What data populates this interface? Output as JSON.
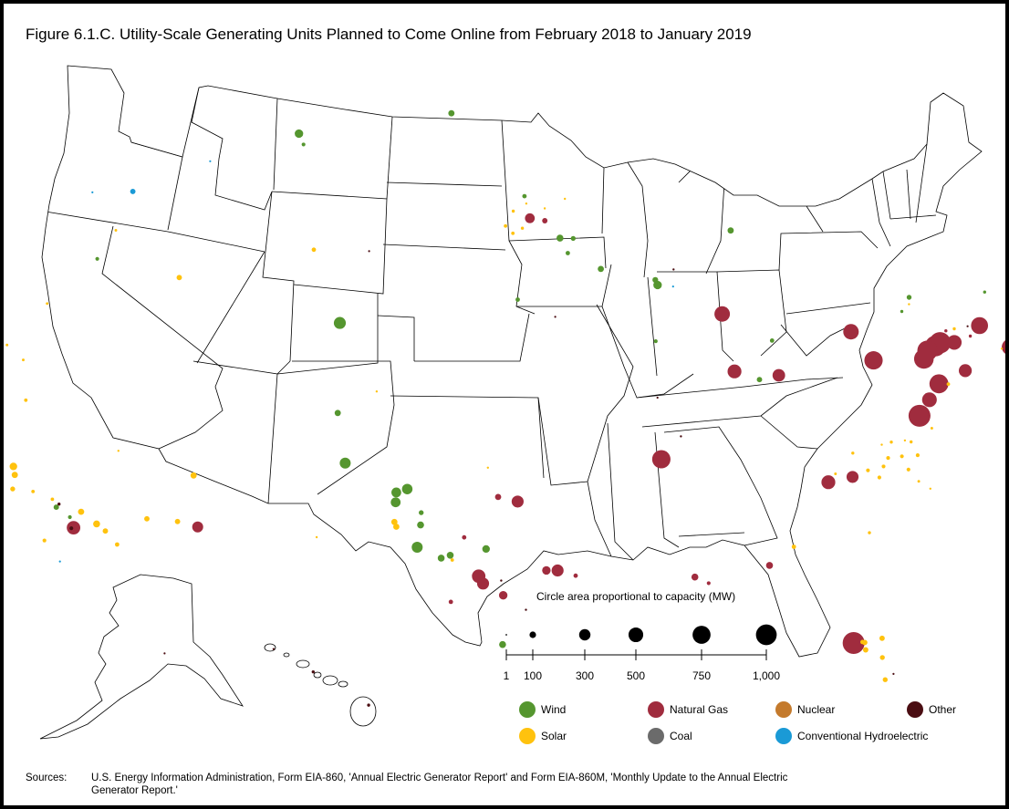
{
  "title": "Figure 6.1.C. Utility-Scale Generating Units Planned to Come Online from February 2018 to January 2019",
  "scale": {
    "caption": "Circle area proportional to capacity (MW)",
    "ticks": [
      "1",
      "100",
      "300",
      "500",
      "750",
      "1,000"
    ],
    "values": [
      1,
      100,
      300,
      500,
      750,
      1000
    ]
  },
  "legend": [
    {
      "key": "wind",
      "label": "Wind",
      "color": "#55962f"
    },
    {
      "key": "solar",
      "label": "Solar",
      "color": "#ffc20e"
    },
    {
      "key": "gas",
      "label": "Natural Gas",
      "color": "#a02c3e"
    },
    {
      "key": "coal",
      "label": "Coal",
      "color": "#6b6b6b"
    },
    {
      "key": "nuclear",
      "label": "Nuclear",
      "color": "#c47a2c"
    },
    {
      "key": "hydro",
      "label": "Conventional Hydroelectric",
      "color": "#1a9ad6"
    },
    {
      "key": "other",
      "label": "Other",
      "color": "#4a0d12"
    }
  ],
  "sources": {
    "label": "Sources:",
    "text": "U.S. Energy Information Administration, Form EIA-860, 'Annual Electric Generator Report' and Form EIA-860M, 'Monthly Update to the Annual Electric Generator Report.'"
  },
  "units": [
    {
      "type": "gas",
      "mw": 1000,
      "lon": -77.3,
      "lat": 38.0
    },
    {
      "type": "gas",
      "mw": 1000,
      "lon": -82.2,
      "lat": 27.9
    },
    {
      "type": "gas",
      "mw": 950,
      "lon": -75.3,
      "lat": 41.4
    },
    {
      "type": "gas",
      "mw": 900,
      "lon": -75.6,
      "lat": 41.2
    },
    {
      "type": "gas",
      "mw": 850,
      "lon": -76.1,
      "lat": 40.9
    },
    {
      "type": "gas",
      "mw": 800,
      "lon": -76.4,
      "lat": 40.5
    },
    {
      "type": "gas",
      "mw": 750,
      "lon": -75.9,
      "lat": 39.6
    },
    {
      "type": "gas",
      "mw": 700,
      "lon": -79.1,
      "lat": 39.9
    },
    {
      "type": "gas",
      "mw": 700,
      "lon": -90.2,
      "lat": 34.5
    },
    {
      "type": "gas",
      "mw": 600,
      "lon": -72.8,
      "lat": 42.7
    },
    {
      "type": "gas",
      "mw": 550,
      "lon": -71.4,
      "lat": 42.2
    },
    {
      "type": "gas",
      "mw": 500,
      "lon": -80.0,
      "lat": 40.9
    },
    {
      "type": "gas",
      "mw": 500,
      "lon": -86.6,
      "lat": 40.7
    },
    {
      "type": "gas",
      "mw": 450,
      "lon": -74.5,
      "lat": 41.6
    },
    {
      "type": "gas",
      "mw": 450,
      "lon": -76.6,
      "lat": 38.8
    },
    {
      "type": "gas",
      "mw": 400,
      "lon": -86.3,
      "lat": 38.4
    },
    {
      "type": "gas",
      "mw": 400,
      "lon": -82.4,
      "lat": 34.4
    },
    {
      "type": "gas",
      "mw": 380,
      "lon": -98.6,
      "lat": 29.6
    },
    {
      "type": "gas",
      "mw": 380,
      "lon": -117.6,
      "lat": 34.1
    },
    {
      "type": "gas",
      "mw": 350,
      "lon": -74.3,
      "lat": 40.5
    },
    {
      "type": "gas",
      "mw": 330,
      "lon": -84.1,
      "lat": 38.5
    },
    {
      "type": "gas",
      "mw": 300,
      "lon": -98.4,
      "lat": 29.3
    },
    {
      "type": "gas",
      "mw": 300,
      "lon": -96.9,
      "lat": 32.6
    },
    {
      "type": "gas",
      "mw": 300,
      "lon": -81.2,
      "lat": 34.8
    },
    {
      "type": "gas",
      "mw": 300,
      "lon": -95.1,
      "lat": 29.8
    },
    {
      "type": "gas",
      "mw": 250,
      "lon": -111.6,
      "lat": 32.9
    },
    {
      "type": "gas",
      "mw": 200,
      "lon": -77.0,
      "lat": 38.1
    },
    {
      "type": "gas",
      "mw": 200,
      "lon": -96.4,
      "lat": 44.1
    },
    {
      "type": "gas",
      "mw": 200,
      "lon": -71.0,
      "lat": 41.9
    },
    {
      "type": "gas",
      "mw": 150,
      "lon": -95.6,
      "lat": 29.8
    },
    {
      "type": "gas",
      "mw": 150,
      "lon": -97.5,
      "lat": 28.8
    },
    {
      "type": "gas",
      "mw": 100,
      "lon": -89.0,
      "lat": 29.8
    },
    {
      "type": "gas",
      "mw": 100,
      "lon": -85.6,
      "lat": 30.6
    },
    {
      "type": "gas",
      "mw": 80,
      "lon": -97.8,
      "lat": 32.8
    },
    {
      "type": "gas",
      "mw": 60,
      "lon": -95.6,
      "lat": 44.0
    },
    {
      "type": "gas",
      "mw": 40,
      "lon": -99.3,
      "lat": 31.2
    },
    {
      "type": "gas",
      "mw": 40,
      "lon": -99.8,
      "lat": 28.6
    },
    {
      "type": "gas",
      "mw": 40,
      "lon": -94.3,
      "lat": 29.6
    },
    {
      "type": "gas",
      "mw": 30,
      "lon": -88.4,
      "lat": 29.6
    },
    {
      "type": "gas",
      "mw": 20,
      "lon": -74.8,
      "lat": 42.0
    },
    {
      "type": "gas",
      "mw": 20,
      "lon": -73.5,
      "lat": 42.1
    },
    {
      "type": "wind",
      "mw": 300,
      "lon": -106.0,
      "lat": 40.4
    },
    {
      "type": "wind",
      "mw": 250,
      "lon": -105.0,
      "lat": 34.6
    },
    {
      "type": "wind",
      "mw": 250,
      "lon": -101.4,
      "lat": 30.9
    },
    {
      "type": "wind",
      "mw": 230,
      "lon": -102.0,
      "lat": 33.3
    },
    {
      "type": "wind",
      "mw": 200,
      "lon": -102.5,
      "lat": 33.2
    },
    {
      "type": "wind",
      "mw": 200,
      "lon": -102.5,
      "lat": 32.8
    },
    {
      "type": "wind",
      "mw": 150,
      "lon": -109.9,
      "lat": 48.6
    },
    {
      "type": "wind",
      "mw": 150,
      "lon": -89.8,
      "lat": 41.6
    },
    {
      "type": "wind",
      "mw": 120,
      "lon": -98.3,
      "lat": 30.7
    },
    {
      "type": "wind",
      "mw": 100,
      "lon": -94.8,
      "lat": 43.3
    },
    {
      "type": "wind",
      "mw": 100,
      "lon": -101.3,
      "lat": 31.8
    },
    {
      "type": "wind",
      "mw": 100,
      "lon": -99.9,
      "lat": 30.5
    },
    {
      "type": "wind",
      "mw": 100,
      "lon": -100.3,
      "lat": 30.4
    },
    {
      "type": "wind",
      "mw": 100,
      "lon": -97.5,
      "lat": 26.8
    },
    {
      "type": "wind",
      "mw": 80,
      "lon": -101.0,
      "lat": 48.5
    },
    {
      "type": "wind",
      "mw": 80,
      "lon": -92.7,
      "lat": 42.1
    },
    {
      "type": "wind",
      "mw": 80,
      "lon": -85.6,
      "lat": 44.2
    },
    {
      "type": "wind",
      "mw": 80,
      "lon": -105.6,
      "lat": 36.7
    },
    {
      "type": "wind",
      "mw": 70,
      "lon": -89.9,
      "lat": 41.8
    },
    {
      "type": "wind",
      "mw": 60,
      "lon": -85.1,
      "lat": 38.2
    },
    {
      "type": "wind",
      "mw": 60,
      "lon": -118.7,
      "lat": 35.2
    },
    {
      "type": "wind",
      "mw": 50,
      "lon": -76.4,
      "lat": 43.0
    },
    {
      "type": "wind",
      "mw": 50,
      "lon": -94.1,
      "lat": 43.3
    },
    {
      "type": "wind",
      "mw": 50,
      "lon": -101.3,
      "lat": 32.3
    },
    {
      "type": "wind",
      "mw": 40,
      "lon": -96.7,
      "lat": 45.0
    },
    {
      "type": "wind",
      "mw": 40,
      "lon": -84.2,
      "lat": 39.9
    },
    {
      "type": "wind",
      "mw": 40,
      "lon": -97.0,
      "lat": 40.8
    },
    {
      "type": "wind",
      "mw": 40,
      "lon": -94.4,
      "lat": 42.7
    },
    {
      "type": "wind",
      "mw": 30,
      "lon": -120.3,
      "lat": 45.7
    },
    {
      "type": "wind",
      "mw": 30,
      "lon": -90.1,
      "lat": 39.3
    },
    {
      "type": "wind",
      "mw": 30,
      "lon": -109.5,
      "lat": 48.1
    },
    {
      "type": "wind",
      "mw": 30,
      "lon": -117.9,
      "lat": 34.6
    },
    {
      "type": "wind",
      "mw": 20,
      "lon": -71.9,
      "lat": 44.3
    },
    {
      "type": "wind",
      "mw": 20,
      "lon": -77.0,
      "lat": 42.3
    },
    {
      "type": "solar",
      "mw": 120,
      "lon": -121.5,
      "lat": 37.6
    },
    {
      "type": "solar",
      "mw": 100,
      "lon": -116.5,
      "lat": 34.0
    },
    {
      "type": "solar",
      "mw": 80,
      "lon": -121.3,
      "lat": 37.2
    },
    {
      "type": "solar",
      "mw": 80,
      "lon": -117.4,
      "lat": 34.7
    },
    {
      "type": "solar",
      "mw": 80,
      "lon": -112.2,
      "lat": 35.1
    },
    {
      "type": "solar",
      "mw": 80,
      "lon": -102.5,
      "lat": 32.0
    },
    {
      "type": "solar",
      "mw": 80,
      "lon": -102.4,
      "lat": 31.8
    },
    {
      "type": "solar",
      "mw": 60,
      "lon": -115.1,
      "lat": 43.7
    },
    {
      "type": "solar",
      "mw": 60,
      "lon": -116.0,
      "lat": 33.6
    },
    {
      "type": "solar",
      "mw": 60,
      "lon": -112.6,
      "lat": 33.3
    },
    {
      "type": "solar",
      "mw": 60,
      "lon": -114.1,
      "lat": 33.7
    },
    {
      "type": "solar",
      "mw": 60,
      "lon": -81.7,
      "lat": 28.0
    },
    {
      "type": "solar",
      "mw": 60,
      "lon": -80.9,
      "lat": 28.3
    },
    {
      "type": "solar",
      "mw": 60,
      "lon": -81.7,
      "lat": 27.7
    },
    {
      "type": "solar",
      "mw": 50,
      "lon": -121.2,
      "lat": 36.6
    },
    {
      "type": "solar",
      "mw": 50,
      "lon": -81.0,
      "lat": 27.5
    },
    {
      "type": "solar",
      "mw": 50,
      "lon": -81.0,
      "lat": 26.6
    },
    {
      "type": "solar",
      "mw": 40,
      "lon": -107.9,
      "lat": 43.6
    },
    {
      "type": "solar",
      "mw": 40,
      "lon": -84.4,
      "lat": 31.5
    },
    {
      "type": "solar",
      "mw": 40,
      "lon": -81.8,
      "lat": 28.0
    },
    {
      "type": "solar",
      "mw": 40,
      "lon": -115.3,
      "lat": 32.9
    },
    {
      "type": "solar",
      "mw": 30,
      "lon": -118.9,
      "lat": 33.9
    },
    {
      "type": "solar",
      "mw": 30,
      "lon": -79.6,
      "lat": 35.5
    },
    {
      "type": "solar",
      "mw": 30,
      "lon": -79.3,
      "lat": 35.9
    },
    {
      "type": "solar",
      "mw": 30,
      "lon": -78.6,
      "lat": 36.1
    },
    {
      "type": "solar",
      "mw": 30,
      "lon": -78.4,
      "lat": 35.6
    },
    {
      "type": "solar",
      "mw": 30,
      "lon": -79.9,
      "lat": 35.0
    },
    {
      "type": "solar",
      "mw": 30,
      "lon": -80.4,
      "lat": 35.2
    },
    {
      "type": "solar",
      "mw": 30,
      "lon": -77.8,
      "lat": 36.3
    },
    {
      "type": "solar",
      "mw": 25,
      "lon": -121.9,
      "lat": 40.4
    },
    {
      "type": "solar",
      "mw": 25,
      "lon": -120.1,
      "lat": 36.2
    },
    {
      "type": "solar",
      "mw": 25,
      "lon": -119.0,
      "lat": 35.6
    },
    {
      "type": "solar",
      "mw": 25,
      "lon": -97.7,
      "lat": 43.8
    },
    {
      "type": "solar",
      "mw": 25,
      "lon": -99.8,
      "lat": 30.3
    },
    {
      "type": "solar",
      "mw": 25,
      "lon": -97.3,
      "lat": 43.5
    },
    {
      "type": "solar",
      "mw": 25,
      "lon": -75.4,
      "lat": 39.7
    },
    {
      "type": "solar",
      "mw": 20,
      "lon": -96.8,
      "lat": 43.7
    },
    {
      "type": "solar",
      "mw": 20,
      "lon": -97.3,
      "lat": 44.4
    },
    {
      "type": "solar",
      "mw": 20,
      "lon": -79.0,
      "lat": 36.6
    },
    {
      "type": "solar",
      "mw": 20,
      "lon": -78.0,
      "lat": 36.8
    },
    {
      "type": "solar",
      "mw": 20,
      "lon": -80.8,
      "lat": 32.6
    },
    {
      "type": "solar",
      "mw": 20,
      "lon": -74.3,
      "lat": 42.2
    },
    {
      "type": "solar",
      "mw": 20,
      "lon": -81.0,
      "lat": 35.8
    },
    {
      "type": "solar",
      "mw": 15,
      "lon": -119.7,
      "lat": 46.7
    },
    {
      "type": "solar",
      "mw": 15,
      "lon": -122.5,
      "lat": 44.5
    },
    {
      "type": "solar",
      "mw": 15,
      "lon": -124.1,
      "lat": 43.3
    },
    {
      "type": "solar",
      "mw": 15,
      "lon": -122.8,
      "lat": 42.3
    },
    {
      "type": "solar",
      "mw": 15,
      "lon": -82.0,
      "lat": 34.8
    },
    {
      "type": "solar",
      "mw": 15,
      "lon": -76.8,
      "lat": 37.6
    },
    {
      "type": "solar",
      "mw": 15,
      "lon": -78.0,
      "lat": 35.2
    },
    {
      "type": "solar",
      "mw": 10,
      "lon": -96.6,
      "lat": 44.7
    },
    {
      "type": "solar",
      "mw": 10,
      "lon": -94.5,
      "lat": 44.9
    },
    {
      "type": "solar",
      "mw": 10,
      "lon": -95.6,
      "lat": 44.5
    },
    {
      "type": "solar",
      "mw": 10,
      "lon": -98.3,
      "lat": 34.0
    },
    {
      "type": "solar",
      "mw": 10,
      "lon": -78.3,
      "lat": 36.8
    },
    {
      "type": "solar",
      "mw": 10,
      "lon": -77.5,
      "lat": 35.0
    },
    {
      "type": "solar",
      "mw": 10,
      "lon": -79.5,
      "lat": 36.4
    },
    {
      "type": "solar",
      "mw": 10,
      "lon": -76.5,
      "lat": 42.7
    },
    {
      "type": "solar",
      "mw": 10,
      "lon": -103.8,
      "lat": 37.4
    },
    {
      "type": "solar",
      "mw": 10,
      "lon": -106.0,
      "lat": 31.7
    },
    {
      "type": "solar",
      "mw": 10,
      "lon": -116.2,
      "lat": 36.9
    },
    {
      "type": "solar",
      "mw": 10,
      "lon": -71.9,
      "lat": 42.0
    },
    {
      "type": "hydro",
      "mw": 60,
      "lon": -119.4,
      "lat": 48.2
    },
    {
      "type": "hydro",
      "mw": 5,
      "lon": -122.1,
      "lat": 48.9
    },
    {
      "type": "hydro",
      "mw": 5,
      "lon": -115.0,
      "lat": 48.4
    },
    {
      "type": "hydro",
      "mw": 5,
      "lon": -122.9,
      "lat": 38.9
    },
    {
      "type": "hydro",
      "mw": 5,
      "lon": -89.0,
      "lat": 41.6
    },
    {
      "type": "hydro",
      "mw": 5,
      "lon": -117.9,
      "lat": 32.8
    },
    {
      "type": "other",
      "mw": 30,
      "lon": -117.7,
      "lat": 34.1
    },
    {
      "type": "other",
      "mw": 20,
      "lon": -118.6,
      "lat": 35.3
    },
    {
      "type": "other",
      "mw": 10,
      "lon": -96.5,
      "lat": 28.2
    },
    {
      "type": "other",
      "mw": 10,
      "lon": -89.2,
      "lat": 35.5
    },
    {
      "type": "other",
      "mw": 10,
      "lon": -88.9,
      "lat": 42.3
    },
    {
      "type": "other",
      "mw": 10,
      "lon": -97.6,
      "lat": 29.4
    },
    {
      "type": "other",
      "mw": 5,
      "lon": -104.9,
      "lat": 43.2
    },
    {
      "type": "other",
      "mw": 5,
      "lon": -95.1,
      "lat": 40.1
    },
    {
      "type": "other",
      "mw": 5,
      "lon": -90.2,
      "lat": 37.0
    },
    {
      "type": "other",
      "mw": 5,
      "lon": -80.6,
      "lat": 26.9
    },
    {
      "type": "other",
      "mw": 5,
      "lon": -73.5,
      "lat": 42.5
    }
  ],
  "remote_units": [
    {
      "type": "other",
      "region": "ak",
      "mw": 5,
      "fx": 0.62,
      "fy": 0.48
    },
    {
      "type": "other",
      "region": "hi",
      "mw": 10,
      "fx": 0.08,
      "fy": 0.08
    },
    {
      "type": "other",
      "region": "hi",
      "mw": 20,
      "fx": 0.43,
      "fy": 0.34
    },
    {
      "type": "other",
      "region": "hi",
      "mw": 20,
      "fx": 0.92,
      "fy": 0.72
    }
  ]
}
